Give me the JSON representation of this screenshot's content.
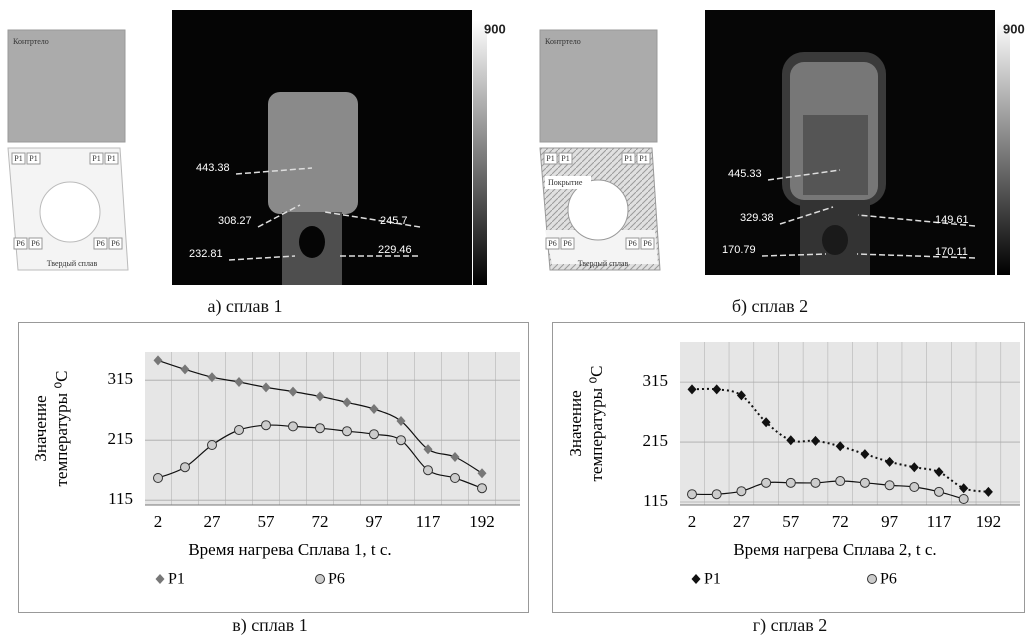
{
  "panels": [
    {
      "schematic": {
        "top": "Контртело",
        "points_top": [
          "P1",
          "P1",
          "P1",
          "P1"
        ],
        "points_bottom": [
          "P6",
          "P6",
          "P6",
          "P6"
        ],
        "bottom": "Твердый сплав"
      },
      "thermal": {
        "labels": [
          443.38,
          308.27,
          245.7,
          232.81,
          229.46
        ],
        "scale_max": 900
      },
      "caption": "а) сплав 1"
    },
    {
      "schematic": {
        "top": "Контртело",
        "points_top": [
          "P1",
          "P1",
          "P1",
          "P1"
        ],
        "coating": "Покрытие",
        "points_bottom": [
          "P6",
          "P6",
          "P6",
          "P6"
        ],
        "bottom": "Твердый сплав"
      },
      "thermal": {
        "labels": [
          445.33,
          329.38,
          149.61,
          170.79,
          170.11
        ],
        "scale_max": 900
      },
      "caption": "б) сплав 2"
    }
  ],
  "chart_data": [
    {
      "type": "line",
      "categories": [
        "2",
        null,
        "27",
        null,
        "57",
        null,
        "72",
        null,
        "97",
        null,
        "117",
        null,
        "192"
      ],
      "xlabel": "Время нагрева Сплава 1, t c.",
      "ylabel": [
        "Значение",
        "температуры ⁰C"
      ],
      "ylim": [
        107,
        362
      ],
      "yticks": [
        115,
        215,
        315
      ],
      "grid": true,
      "series": [
        {
          "name": "P1",
          "color": "#777777",
          "marker": "diamond",
          "line_style": "solid",
          "values": [
            348,
            333,
            320,
            312,
            303,
            296,
            288,
            278,
            267,
            247,
            200,
            187,
            160
          ]
        },
        {
          "name": "P6",
          "color": "#cccccc",
          "marker": "circle",
          "line_style": "solid",
          "values": [
            152,
            170,
            207,
            232,
            240,
            238,
            235,
            230,
            225,
            215,
            165,
            152,
            135
          ]
        }
      ],
      "caption": "в) сплав 1"
    },
    {
      "type": "line",
      "categories": [
        "2",
        null,
        "27",
        null,
        "57",
        null,
        "72",
        null,
        "97",
        null,
        "117",
        null,
        "192"
      ],
      "xlabel": "Время нагрева Сплава 2, t c.",
      "ylabel": [
        "Значение",
        "температуры ⁰C"
      ],
      "ylim": [
        110,
        382
      ],
      "yticks": [
        115,
        215,
        315
      ],
      "grid": true,
      "series": [
        {
          "name": "P1",
          "color": "#111111",
          "marker": "diamond",
          "line_style": "dotted",
          "values": [
            303,
            303,
            293,
            248,
            218,
            217,
            208,
            195,
            182,
            173,
            165,
            138,
            132
          ]
        },
        {
          "name": "P6",
          "color": "#cccccc",
          "marker": "circle",
          "line_style": "solid",
          "values": [
            128,
            128,
            133,
            147,
            147,
            147,
            150,
            147,
            143,
            140,
            132,
            120,
            null
          ]
        }
      ],
      "caption": "г) сплав 2"
    }
  ]
}
